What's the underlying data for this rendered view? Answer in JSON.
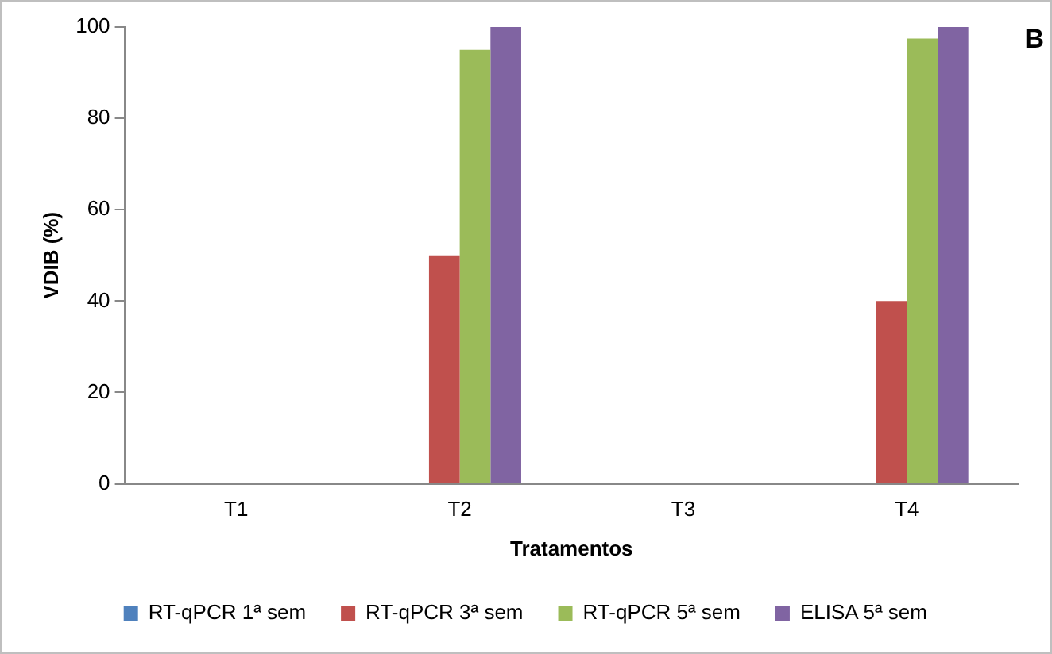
{
  "chart_data": {
    "type": "bar",
    "xlabel": "Tratamentos",
    "ylabel": "VDIB (%)",
    "annotations": [
      "B"
    ],
    "categories": [
      "T1",
      "T2",
      "T3",
      "T4"
    ],
    "series": [
      {
        "name": "RT-qPCR 1ª sem",
        "color": "#4f81bd",
        "values": [
          0,
          0,
          0,
          0
        ]
      },
      {
        "name": "RT-qPCR 3ª sem",
        "color": "#c0504d",
        "values": [
          0,
          50,
          0,
          40
        ]
      },
      {
        "name": "RT-qPCR 5ª sem",
        "color": "#9bbb59",
        "values": [
          0,
          95,
          0,
          97.5
        ]
      },
      {
        "name": "ELISA 5ª sem",
        "color": "#8064a2",
        "values": [
          0,
          100,
          0,
          100
        ]
      }
    ],
    "ylim": [
      0,
      100
    ],
    "yticks": [
      0,
      20,
      40,
      60,
      80,
      100
    ],
    "grid": false,
    "legend": "bottom"
  }
}
